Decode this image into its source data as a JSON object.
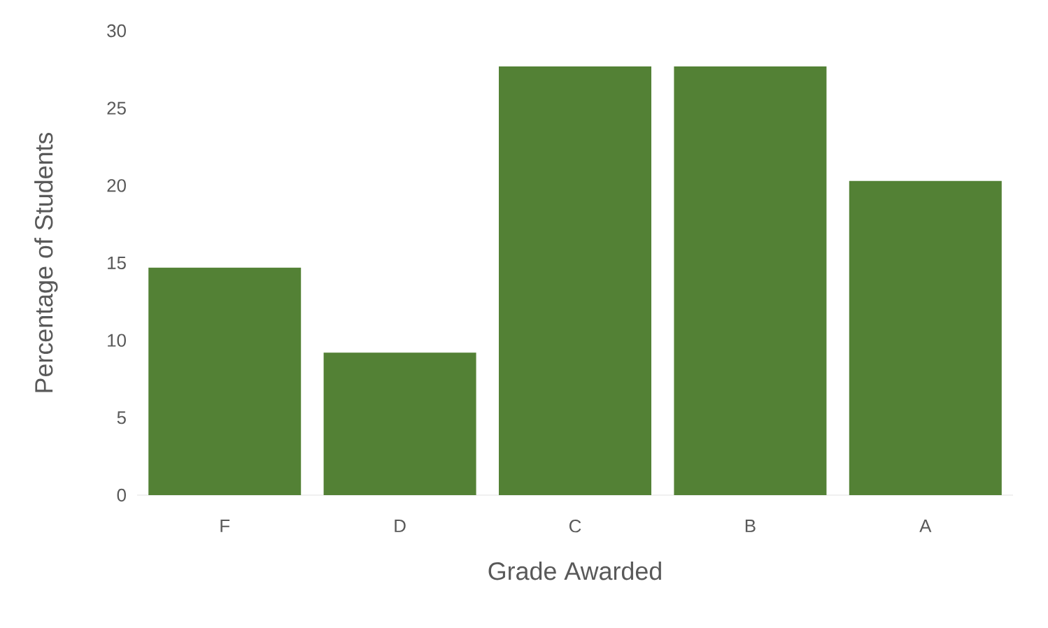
{
  "chart_data": {
    "type": "bar",
    "xlabel": "Grade Awarded",
    "ylabel": "Percentage of Students",
    "categories": [
      "F",
      "D",
      "C",
      "B",
      "A"
    ],
    "values": [
      14.7,
      9.2,
      27.7,
      27.7,
      20.3
    ],
    "color": "#538135",
    "ylim": [
      0,
      30
    ],
    "yticks": [
      0,
      5,
      10,
      15,
      20,
      25,
      30
    ],
    "grid": false
  }
}
